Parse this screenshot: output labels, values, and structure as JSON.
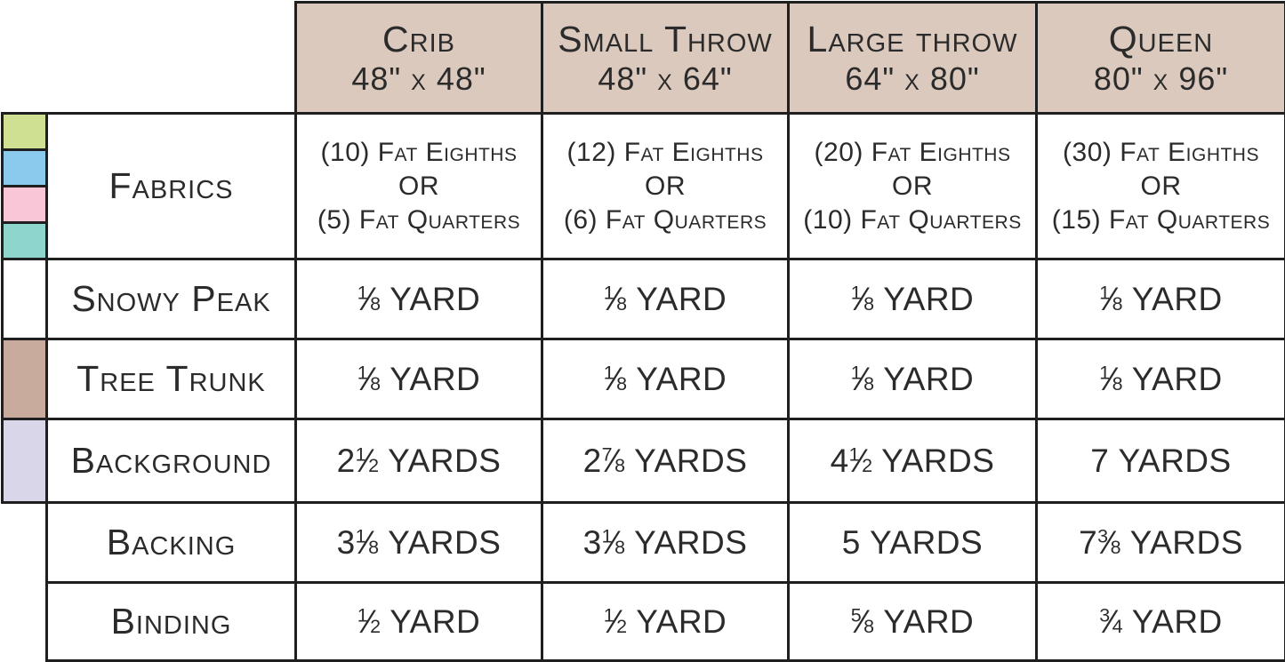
{
  "colors": {
    "header_bg": "#dbc9bd",
    "border": "#1f1f1f",
    "text": "#2b2b2b",
    "swatch_green": "#cfe092",
    "swatch_blue": "#8bcaed",
    "swatch_pink": "#f9c6d8",
    "swatch_teal": "#8ed5cd",
    "swatch_white": "#ffffff",
    "swatch_brown": "#c8ab9d",
    "swatch_lavender": "#d8d6e8"
  },
  "table": {
    "columns": [
      {
        "name": "Crib",
        "size": "48\" x 48\""
      },
      {
        "name": "Small Throw",
        "size": "48\" x 64\""
      },
      {
        "name": "Large throw",
        "size": "64\" x 80\""
      },
      {
        "name": "Queen",
        "size": "80\" x 96\""
      }
    ],
    "rows": [
      {
        "label": "Fabrics",
        "swatches": [
          "#cfe092",
          "#8bcaed",
          "#f9c6d8",
          "#8ed5cd"
        ],
        "values": [
          [
            "(10) Fat Eighths",
            "OR",
            "(5) Fat Quarters"
          ],
          [
            "(12) Fat Eighths",
            "OR",
            "(6) Fat Quarters"
          ],
          [
            "(20) Fat Eighths",
            "OR",
            "(10) Fat Quarters"
          ],
          [
            "(30) Fat Eighths",
            "OR",
            "(15) Fat Quarters"
          ]
        ]
      },
      {
        "label": "Snowy Peak",
        "swatch": "#ffffff",
        "values": [
          "1/8 YARD",
          "1/8 YARD",
          "1/8 YARD",
          "1/8 YARD"
        ]
      },
      {
        "label": "Tree Trunk",
        "swatch": "#c8ab9d",
        "values": [
          "1/8 YARD",
          "1/8 YARD",
          "1/8 YARD",
          "1/8 YARD"
        ]
      },
      {
        "label": "Background",
        "swatch": "#d8d6e8",
        "values": [
          "2 1/2 YARDS",
          "2 7/8 YARDS",
          "4 1/2 YARDS",
          "7 YARDS"
        ]
      },
      {
        "label": "Backing",
        "swatch": null,
        "values": [
          "3 1/8 YARDS",
          "3 1/8 YARDS",
          "5 YARDS",
          "7 3/8 YARDS"
        ]
      },
      {
        "label": "Binding",
        "swatch": null,
        "values": [
          "1/2 YARD",
          "1/2 YARD",
          "5/8 YARD",
          "3/4 YARD"
        ]
      }
    ]
  }
}
